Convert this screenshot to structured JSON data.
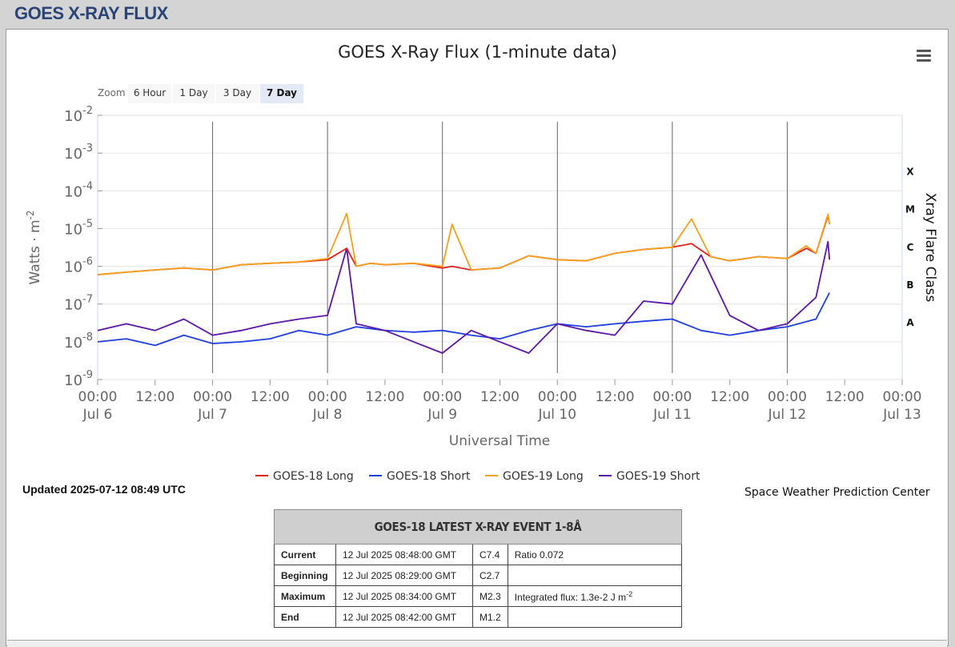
{
  "page": {
    "title": "GOES X-RAY FLUX"
  },
  "chart_header": {
    "title": "GOES X-Ray Flux (1-minute data)",
    "menu_icon": "hamburger-menu-icon"
  },
  "zoom": {
    "label": "Zoom",
    "buttons": [
      "6 Hour",
      "1 Day",
      "3 Day",
      "7 Day"
    ],
    "selected": "7 Day"
  },
  "chart_data": {
    "type": "line",
    "title": "GOES X-Ray Flux (1-minute data)",
    "xlabel": "Universal Time",
    "ylabel": "Watts · m",
    "ylabel_sup": "-2",
    "y2label": "Xray Flare Class",
    "y_scale": "log",
    "ylim": [
      1e-09,
      0.01
    ],
    "y_ticks": [
      {
        "base": "10",
        "exp": "-2",
        "value": 0.01
      },
      {
        "base": "10",
        "exp": "-3",
        "value": 0.001
      },
      {
        "base": "10",
        "exp": "-4",
        "value": 0.0001
      },
      {
        "base": "10",
        "exp": "-5",
        "value": 1e-05
      },
      {
        "base": "10",
        "exp": "-6",
        "value": 1e-06
      },
      {
        "base": "10",
        "exp": "-7",
        "value": 1e-07
      },
      {
        "base": "10",
        "exp": "-8",
        "value": 1e-08
      },
      {
        "base": "10",
        "exp": "-9",
        "value": 1e-09
      }
    ],
    "flare_classes": [
      {
        "label": "X",
        "value": 0.00032
      },
      {
        "label": "M",
        "value": 3.2e-05
      },
      {
        "label": "C",
        "value": 3.2e-06
      },
      {
        "label": "B",
        "value": 3.2e-07
      },
      {
        "label": "A",
        "value": 3.2e-08
      }
    ],
    "xlim": [
      "2025-07-06 00:00",
      "2025-07-13 00:00"
    ],
    "x_ticks": [
      {
        "time": "00:00",
        "date": "Jul 6",
        "t": "2025-07-06 00:00"
      },
      {
        "time": "12:00",
        "date": "",
        "t": "2025-07-06 12:00"
      },
      {
        "time": "00:00",
        "date": "Jul 7",
        "t": "2025-07-07 00:00"
      },
      {
        "time": "12:00",
        "date": "",
        "t": "2025-07-07 12:00"
      },
      {
        "time": "00:00",
        "date": "Jul 8",
        "t": "2025-07-08 00:00"
      },
      {
        "time": "12:00",
        "date": "",
        "t": "2025-07-08 12:00"
      },
      {
        "time": "00:00",
        "date": "Jul 9",
        "t": "2025-07-09 00:00"
      },
      {
        "time": "12:00",
        "date": "",
        "t": "2025-07-09 12:00"
      },
      {
        "time": "00:00",
        "date": "Jul 10",
        "t": "2025-07-10 00:00"
      },
      {
        "time": "12:00",
        "date": "",
        "t": "2025-07-10 12:00"
      },
      {
        "time": "00:00",
        "date": "Jul 11",
        "t": "2025-07-11 00:00"
      },
      {
        "time": "12:00",
        "date": "",
        "t": "2025-07-11 12:00"
      },
      {
        "time": "00:00",
        "date": "Jul 12",
        "t": "2025-07-12 00:00"
      },
      {
        "time": "12:00",
        "date": "",
        "t": "2025-07-12 12:00"
      },
      {
        "time": "00:00",
        "date": "Jul 13",
        "t": "2025-07-13 00:00"
      }
    ],
    "series": [
      {
        "name": "GOES-18 Long",
        "color": "#e8201b",
        "x": [
          "2025-07-06 00:00",
          "2025-07-06 06:00",
          "2025-07-06 12:00",
          "2025-07-06 18:00",
          "2025-07-07 00:00",
          "2025-07-07 06:00",
          "2025-07-07 12:00",
          "2025-07-07 18:00",
          "2025-07-08 00:00",
          "2025-07-08 04:00",
          "2025-07-08 06:00",
          "2025-07-08 09:00",
          "2025-07-08 12:00",
          "2025-07-08 18:00",
          "2025-07-09 00:00",
          "2025-07-09 02:00",
          "2025-07-09 06:00",
          "2025-07-09 12:00",
          "2025-07-09 18:00",
          "2025-07-10 00:00",
          "2025-07-10 06:00",
          "2025-07-10 12:00",
          "2025-07-10 18:00",
          "2025-07-11 00:00",
          "2025-07-11 04:00",
          "2025-07-11 08:00",
          "2025-07-11 12:00",
          "2025-07-11 18:00",
          "2025-07-12 00:00",
          "2025-07-12 04:00",
          "2025-07-12 06:00",
          "2025-07-12 08:30",
          "2025-07-12 08:49"
        ],
        "values": [
          6e-07,
          7e-07,
          8e-07,
          9e-07,
          8e-07,
          1.1e-06,
          1.2e-06,
          1.3e-06,
          1.5e-06,
          3e-06,
          1e-06,
          1.2e-06,
          1.1e-06,
          1.2e-06,
          9e-07,
          1e-06,
          8e-07,
          9e-07,
          1.9e-06,
          1.5e-06,
          1.4e-06,
          2.2e-06,
          2.8e-06,
          3.2e-06,
          4e-06,
          1.8e-06,
          1.4e-06,
          1.8e-06,
          1.6e-06,
          3e-06,
          2.2e-06,
          2.2e-05,
          1.3e-05
        ]
      },
      {
        "name": "GOES-18 Short",
        "color": "#1f3fe0",
        "x": [
          "2025-07-06 00:00",
          "2025-07-06 06:00",
          "2025-07-06 12:00",
          "2025-07-06 18:00",
          "2025-07-07 00:00",
          "2025-07-07 06:00",
          "2025-07-07 12:00",
          "2025-07-07 18:00",
          "2025-07-08 00:00",
          "2025-07-08 06:00",
          "2025-07-08 12:00",
          "2025-07-08 18:00",
          "2025-07-09 00:00",
          "2025-07-09 06:00",
          "2025-07-09 12:00",
          "2025-07-09 18:00",
          "2025-07-10 00:00",
          "2025-07-10 06:00",
          "2025-07-10 12:00",
          "2025-07-10 18:00",
          "2025-07-11 00:00",
          "2025-07-11 06:00",
          "2025-07-11 12:00",
          "2025-07-11 18:00",
          "2025-07-12 00:00",
          "2025-07-12 06:00",
          "2025-07-12 08:49"
        ],
        "values": [
          1e-08,
          1.2e-08,
          8e-09,
          1.5e-08,
          9e-09,
          1e-08,
          1.2e-08,
          2e-08,
          1.5e-08,
          2.5e-08,
          2e-08,
          1.8e-08,
          2e-08,
          1.5e-08,
          1.2e-08,
          2e-08,
          3e-08,
          2.5e-08,
          3e-08,
          3.5e-08,
          4e-08,
          2e-08,
          1.5e-08,
          2e-08,
          2.5e-08,
          4e-08,
          2e-07
        ]
      },
      {
        "name": "GOES-19 Long",
        "color": "#f5a01e",
        "x": [
          "2025-07-06 00:00",
          "2025-07-06 06:00",
          "2025-07-06 12:00",
          "2025-07-06 18:00",
          "2025-07-07 00:00",
          "2025-07-07 06:00",
          "2025-07-07 12:00",
          "2025-07-07 18:00",
          "2025-07-08 00:00",
          "2025-07-08 04:00",
          "2025-07-08 06:00",
          "2025-07-08 09:00",
          "2025-07-08 12:00",
          "2025-07-08 18:00",
          "2025-07-09 00:00",
          "2025-07-09 02:00",
          "2025-07-09 06:00",
          "2025-07-09 12:00",
          "2025-07-09 18:00",
          "2025-07-10 00:00",
          "2025-07-10 06:00",
          "2025-07-10 12:00",
          "2025-07-10 18:00",
          "2025-07-11 00:00",
          "2025-07-11 04:00",
          "2025-07-11 08:00",
          "2025-07-11 12:00",
          "2025-07-11 18:00",
          "2025-07-12 00:00",
          "2025-07-12 04:00",
          "2025-07-12 06:00",
          "2025-07-12 08:30",
          "2025-07-12 08:49"
        ],
        "values": [
          6e-07,
          7e-07,
          8e-07,
          9e-07,
          8e-07,
          1.1e-06,
          1.2e-06,
          1.3e-06,
          1.6e-06,
          2.5e-05,
          1e-06,
          1.2e-06,
          1.1e-06,
          1.2e-06,
          1e-06,
          1.3e-05,
          8e-07,
          9e-07,
          1.9e-06,
          1.5e-06,
          1.4e-06,
          2.2e-06,
          2.8e-06,
          3.2e-06,
          1.8e-05,
          1.8e-06,
          1.4e-06,
          1.8e-06,
          1.6e-06,
          3.5e-06,
          2.2e-06,
          2.4e-05,
          1.3e-05
        ]
      },
      {
        "name": "GOES-19 Short",
        "color": "#5b17a8",
        "x": [
          "2025-07-06 00:00",
          "2025-07-06 06:00",
          "2025-07-06 12:00",
          "2025-07-06 18:00",
          "2025-07-07 00:00",
          "2025-07-07 06:00",
          "2025-07-07 12:00",
          "2025-07-07 18:00",
          "2025-07-08 00:00",
          "2025-07-08 04:00",
          "2025-07-08 06:00",
          "2025-07-08 12:00",
          "2025-07-08 18:00",
          "2025-07-09 00:00",
          "2025-07-09 06:00",
          "2025-07-09 12:00",
          "2025-07-09 18:00",
          "2025-07-10 00:00",
          "2025-07-10 06:00",
          "2025-07-10 12:00",
          "2025-07-10 18:00",
          "2025-07-11 00:00",
          "2025-07-11 06:00",
          "2025-07-11 12:00",
          "2025-07-11 18:00",
          "2025-07-12 00:00",
          "2025-07-12 06:00",
          "2025-07-12 08:30",
          "2025-07-12 08:49"
        ],
        "values": [
          2e-08,
          3e-08,
          2e-08,
          4e-08,
          1.5e-08,
          2e-08,
          3e-08,
          4e-08,
          5e-08,
          3e-06,
          3e-08,
          2e-08,
          1e-08,
          5e-09,
          2e-08,
          1e-08,
          5e-09,
          3e-08,
          2e-08,
          1.5e-08,
          1.2e-07,
          1e-07,
          2e-06,
          5e-08,
          2e-08,
          3e-08,
          1.5e-07,
          4.5e-06,
          1.5e-06
        ]
      }
    ],
    "legend_position": "bottom-center",
    "grid": true
  },
  "footer": {
    "updated": "Updated 2025-07-12 08:49 UTC",
    "credit": "Space Weather Prediction Center"
  },
  "event": {
    "header": "GOES-18 LATEST X-RAY EVENT 1-8Å",
    "rows": [
      {
        "label": "Current",
        "time": "12 Jul 2025 08:48:00 GMT",
        "class": "C7.4",
        "extra": "Ratio 0.072"
      },
      {
        "label": "Beginning",
        "time": "12 Jul 2025 08:29:00 GMT",
        "class": "C2.7",
        "extra": ""
      },
      {
        "label": "Maximum",
        "time": "12 Jul 2025 08:34:00 GMT",
        "class": "M2.3",
        "extra": "Integrated flux: 1.3e-2 J m",
        "extra_sup": "-2"
      },
      {
        "label": "End",
        "time": "12 Jul 2025 08:42:00 GMT",
        "class": "M1.2",
        "extra": ""
      }
    ]
  }
}
